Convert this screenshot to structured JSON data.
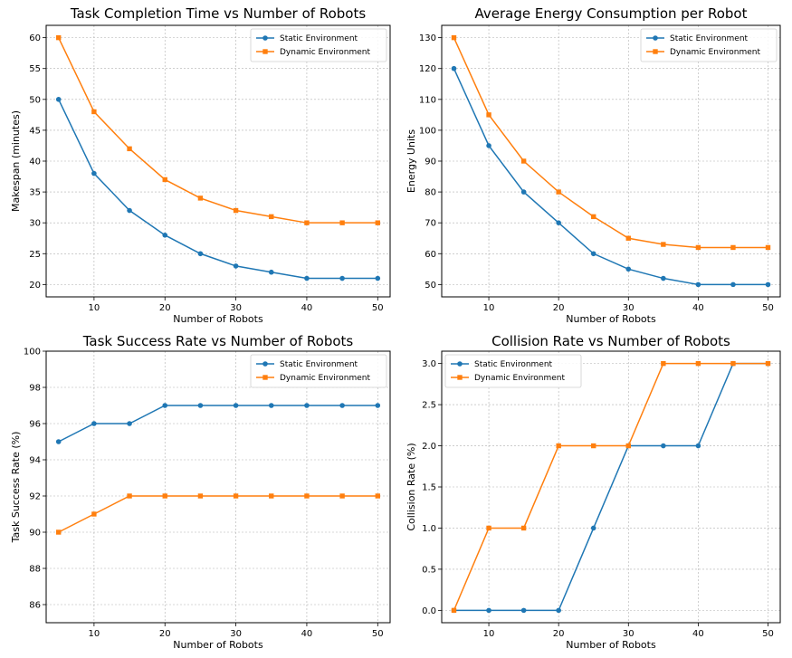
{
  "chart_data": [
    {
      "type": "line",
      "title": "Task Completion Time vs Number of Robots",
      "xlabel": "Number of Robots",
      "ylabel": "Makespan (minutes)",
      "x": [
        5,
        10,
        15,
        20,
        25,
        30,
        35,
        40,
        45,
        50
      ],
      "xticks": [
        10,
        20,
        30,
        40,
        50
      ],
      "xtick_labels": [
        "10",
        "20",
        "30",
        "40",
        "50"
      ],
      "xlim": [
        3.25,
        51.75
      ],
      "yticks": [
        20,
        25,
        30,
        35,
        40,
        45,
        50,
        55,
        60
      ],
      "ytick_labels": [
        "20",
        "25",
        "30",
        "35",
        "40",
        "45",
        "50",
        "55",
        "60"
      ],
      "ylim": [
        18.0,
        62.0
      ],
      "grid": true,
      "legend_position": "top-right",
      "series": [
        {
          "name": "Static Environment",
          "color": "#1f77b4",
          "marker": "circle",
          "values": [
            50,
            38,
            32,
            28,
            25,
            23,
            22,
            21,
            21,
            21
          ]
        },
        {
          "name": "Dynamic Environment",
          "color": "#ff7f0e",
          "marker": "square",
          "values": [
            60,
            48,
            42,
            37,
            34,
            32,
            31,
            30,
            30,
            30
          ]
        }
      ]
    },
    {
      "type": "line",
      "title": "Average Energy Consumption per Robot",
      "xlabel": "Number of Robots",
      "ylabel": "Energy Units",
      "x": [
        5,
        10,
        15,
        20,
        25,
        30,
        35,
        40,
        45,
        50
      ],
      "xticks": [
        10,
        20,
        30,
        40,
        50
      ],
      "xtick_labels": [
        "10",
        "20",
        "30",
        "40",
        "50"
      ],
      "xlim": [
        3.25,
        51.75
      ],
      "yticks": [
        50,
        60,
        70,
        80,
        90,
        100,
        110,
        120,
        130
      ],
      "ytick_labels": [
        "50",
        "60",
        "70",
        "80",
        "90",
        "100",
        "110",
        "120",
        "130"
      ],
      "ylim": [
        46.0,
        134.0
      ],
      "grid": true,
      "legend_position": "top-right",
      "series": [
        {
          "name": "Static Environment",
          "color": "#1f77b4",
          "marker": "circle",
          "values": [
            120,
            95,
            80,
            70,
            60,
            55,
            52,
            50,
            50,
            50
          ]
        },
        {
          "name": "Dynamic Environment",
          "color": "#ff7f0e",
          "marker": "square",
          "values": [
            130,
            105,
            90,
            80,
            72,
            65,
            63,
            62,
            62,
            62
          ]
        }
      ]
    },
    {
      "type": "line",
      "title": "Task Success Rate vs Number of Robots",
      "xlabel": "Number of Robots",
      "ylabel": "Task Success Rate (%)",
      "x": [
        5,
        10,
        15,
        20,
        25,
        30,
        35,
        40,
        45,
        50
      ],
      "xticks": [
        10,
        20,
        30,
        40,
        50
      ],
      "xtick_labels": [
        "10",
        "20",
        "30",
        "40",
        "50"
      ],
      "xlim": [
        3.25,
        51.75
      ],
      "yticks": [
        86,
        88,
        90,
        92,
        94,
        96,
        98,
        100
      ],
      "ytick_labels": [
        "86",
        "88",
        "90",
        "92",
        "94",
        "96",
        "98",
        "100"
      ],
      "ylim": [
        85.0,
        100.0
      ],
      "grid": true,
      "legend_position": "top-right",
      "series": [
        {
          "name": "Static Environment",
          "color": "#1f77b4",
          "marker": "circle",
          "values": [
            95,
            96,
            96,
            97,
            97,
            97,
            97,
            97,
            97,
            97
          ]
        },
        {
          "name": "Dynamic Environment",
          "color": "#ff7f0e",
          "marker": "square",
          "values": [
            90,
            91,
            92,
            92,
            92,
            92,
            92,
            92,
            92,
            92
          ]
        }
      ]
    },
    {
      "type": "line",
      "title": "Collision Rate vs Number of Robots",
      "xlabel": "Number of Robots",
      "ylabel": "Collision Rate (%)",
      "x": [
        5,
        10,
        15,
        20,
        25,
        30,
        35,
        40,
        45,
        50
      ],
      "xticks": [
        10,
        20,
        30,
        40,
        50
      ],
      "xtick_labels": [
        "10",
        "20",
        "30",
        "40",
        "50"
      ],
      "xlim": [
        3.25,
        51.75
      ],
      "yticks": [
        0,
        0.5,
        1,
        1.5,
        2,
        2.5,
        3
      ],
      "ytick_labels": [
        "0.0",
        "0.5",
        "1.0",
        "1.5",
        "2.0",
        "2.5",
        "3.0"
      ],
      "ylim": [
        -0.15,
        3.15
      ],
      "grid": true,
      "legend_position": "top-left",
      "series": [
        {
          "name": "Static Environment",
          "color": "#1f77b4",
          "marker": "circle",
          "values": [
            0,
            0,
            0,
            0,
            1,
            2,
            2,
            2,
            3,
            3
          ]
        },
        {
          "name": "Dynamic Environment",
          "color": "#ff7f0e",
          "marker": "square",
          "values": [
            0,
            1,
            1,
            2,
            2,
            2,
            3,
            3,
            3,
            3
          ]
        }
      ]
    }
  ]
}
